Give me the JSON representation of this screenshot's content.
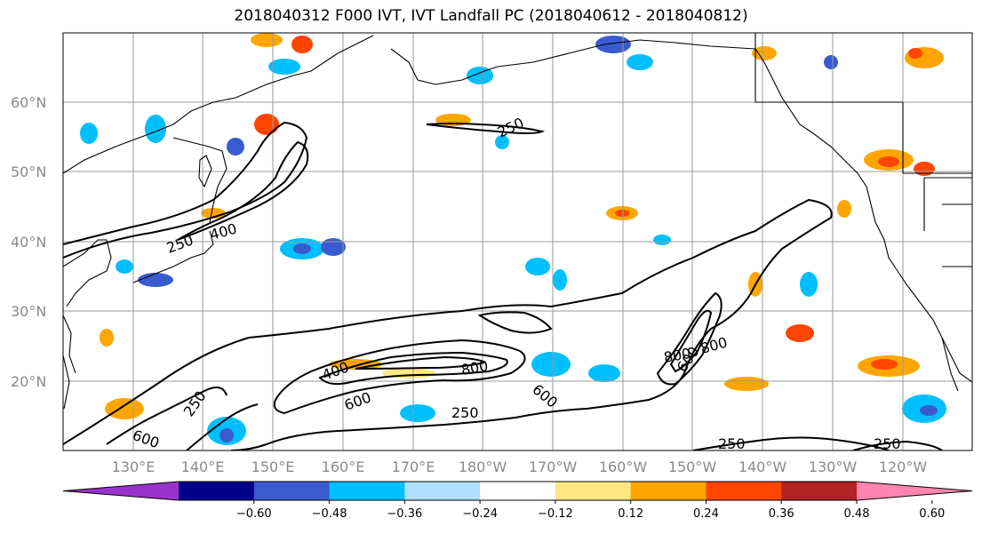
{
  "title": "2018040312 F000 IVT, IVT Landfall PC (2018040612 - 2018040812)",
  "lat_labels": [
    "60°N",
    "50°N",
    "40°N",
    "30°N",
    "20°N"
  ],
  "lon_labels": [
    "130°E",
    "140°E",
    "150°E",
    "160°E",
    "170°E",
    "180°W",
    "170°W",
    "160°W",
    "150°W",
    "140°W",
    "130°W",
    "120°W"
  ],
  "contour_labels": [
    "250",
    "400",
    "250",
    "600",
    "800",
    "600",
    "800",
    "600",
    "400",
    "250",
    "250",
    "250",
    "250",
    "800",
    "600"
  ],
  "colorbar": {
    "colors": [
      "#9932cc",
      "#00008b",
      "#3a5bd0",
      "#00bfff",
      "#b0e0ff",
      "#ffffff",
      "#ffe880",
      "#ffa500",
      "#ff4500",
      "#b22222",
      "#ff85b0"
    ],
    "tick_labels": [
      "−0.60",
      "−0.48",
      "−0.36",
      "−0.24",
      "−0.12",
      "0.12",
      "0.24",
      "0.36",
      "0.48",
      "0.60"
    ]
  }
}
